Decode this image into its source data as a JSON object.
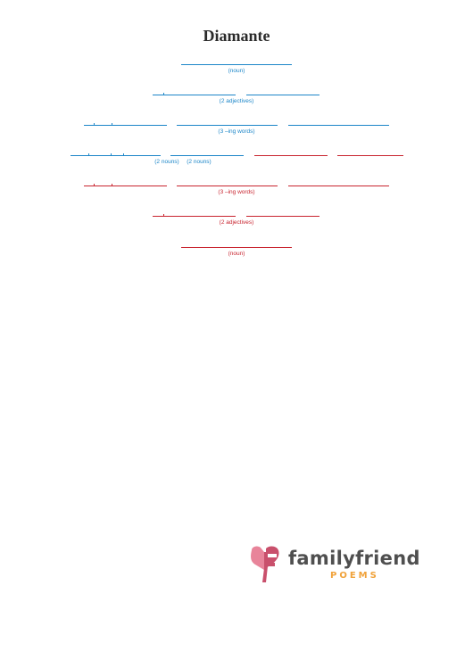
{
  "title": "Diamante",
  "labels": {
    "noun": "(noun)",
    "two_adjectives": "(2 adjectives)",
    "three_ing_words": "(3 –ing words)",
    "two_nouns": "(2 nouns)"
  },
  "logo": {
    "name": "familyfriend",
    "sub": "POEMS"
  },
  "colors": {
    "blue": "#1c86c8",
    "red": "#c8242f",
    "logo_pink": "#e8849a",
    "logo_dark_pink": "#c9506c",
    "logo_text": "#4f4f4f",
    "logo_orange": "#f0a23a"
  }
}
